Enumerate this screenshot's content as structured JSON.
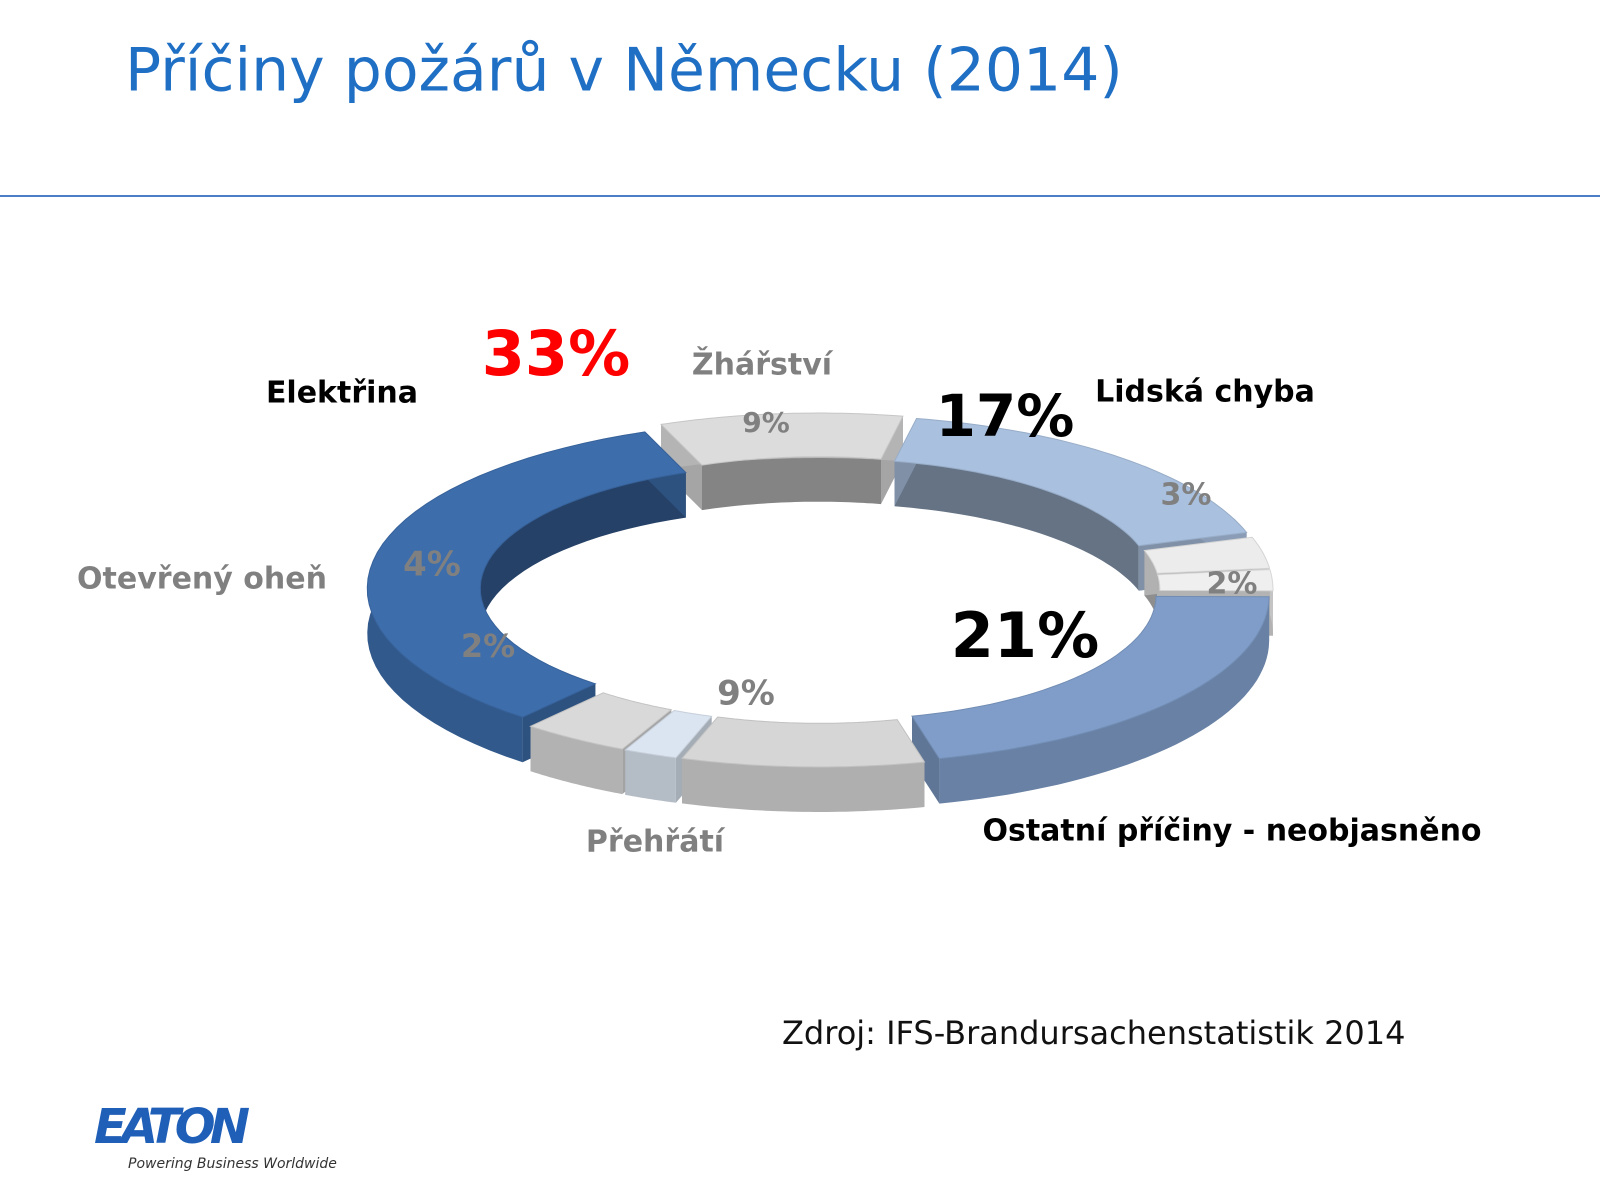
{
  "title": "Příčiny požárů v Německu (2014)",
  "chart_data": {
    "type": "donut3d",
    "categories": [
      "Elektřina",
      "Žhářství",
      "Lidská chyba",
      null,
      null,
      "Ostatní  příčiny - neobjasněno",
      "Přehřátí",
      null,
      "Otevřený oheň"
    ],
    "values": [
      33,
      9,
      17,
      3,
      2,
      21,
      9,
      2,
      4
    ],
    "value_labels": [
      "33%",
      "9%",
      "17%",
      "3%",
      "2%",
      "21%",
      "9%",
      "2%",
      "4%"
    ],
    "colors": [
      "#3d6dab",
      "#dcdcdc",
      "#a9c0de",
      "#ececec",
      "#efefef",
      "#7f9dc8",
      "#d6d6d6",
      "#dbe5f1",
      "#d9d9d9"
    ],
    "value_label_colors": [
      "#ff0000",
      "#808080",
      "#000000",
      "#808080",
      "#808080",
      "#000000",
      "#808080",
      "#808080",
      "#808080"
    ],
    "category_label_colors": [
      "#000000",
      "#808080",
      "#000000",
      null,
      null,
      "#000000",
      "#808080",
      null,
      "#808080"
    ]
  },
  "source": "Zdroj: IFS-Brandursachenstatistik 2014",
  "logo": {
    "name": "EATON",
    "tagline": "Powering Business Worldwide"
  }
}
